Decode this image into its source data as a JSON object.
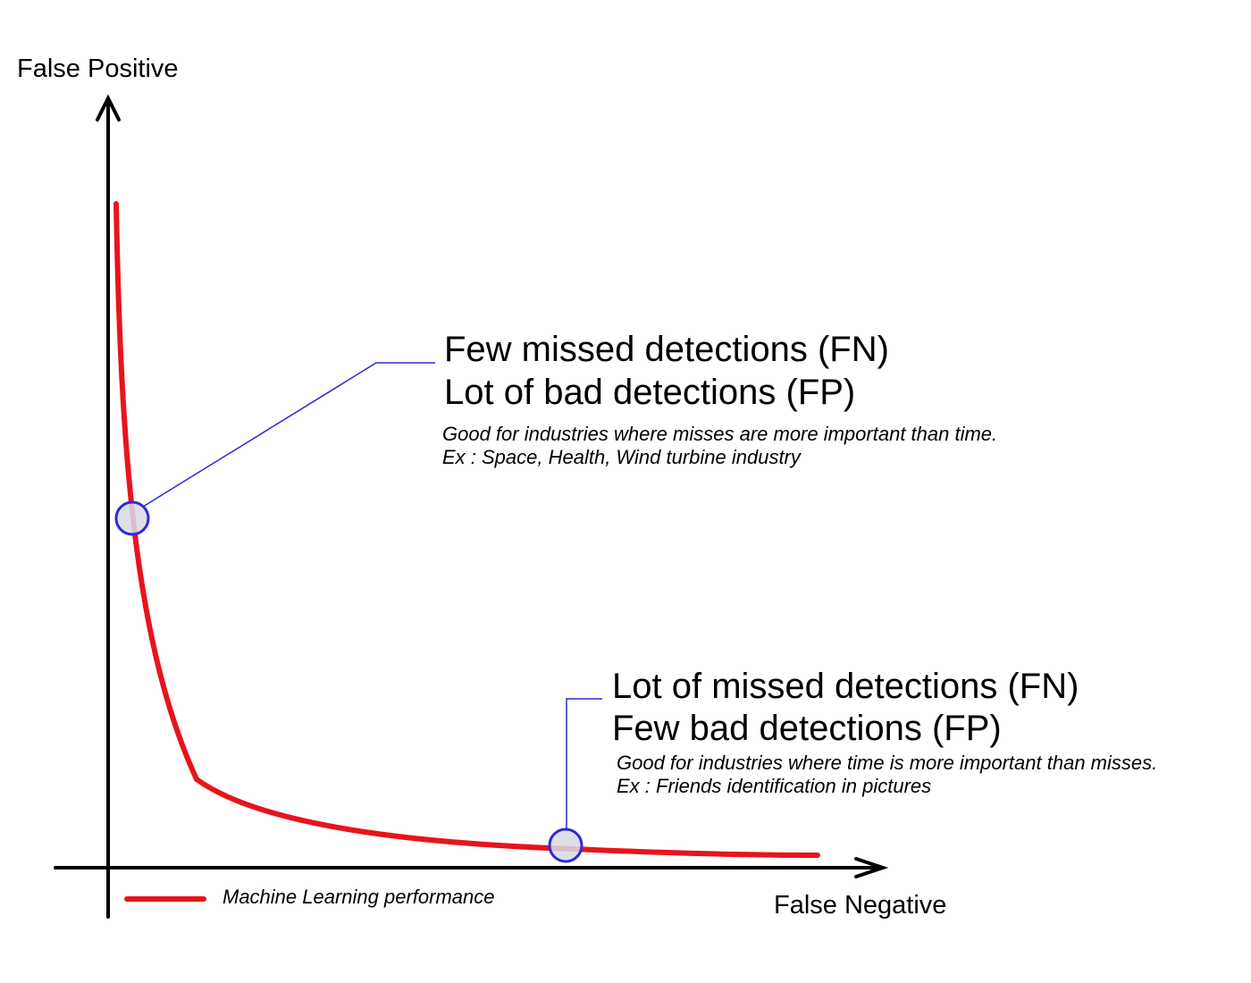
{
  "axes": {
    "y_label": "False Positive",
    "x_label": "False Negative"
  },
  "annotations": {
    "upper": {
      "line1": "Few missed detections (FN)",
      "line2": "Lot of bad detections (FP)",
      "note1": "Good for industries where misses are more important than time.",
      "note2": "Ex : Space, Health, Wind turbine industry"
    },
    "lower": {
      "line1": "Lot of missed detections (FN)",
      "line2": "Few bad detections (FP)",
      "note1": "Good for industries where time is more important than misses.",
      "note2": "Ex : Friends identification in pictures"
    }
  },
  "legend": {
    "label": "Machine Learning performance"
  },
  "colors": {
    "curve": "#e8141b",
    "leader": "#2b2bd6",
    "marker_fill": "#d9d9e6",
    "axis": "#000000"
  }
}
